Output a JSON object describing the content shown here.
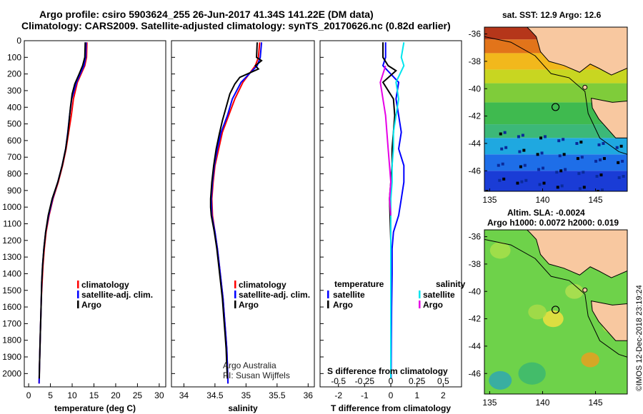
{
  "header": {
    "line1": "Argo profile: csiro 5903624_255 26-Jun-2017 41.34S 141.22E (DM data)",
    "line2": "Climatology: CARS2009. Satellite-adjusted climatology: synTS_20170626.nc (0.82d earlier)"
  },
  "colors": {
    "climatology": "#ff0000",
    "satellite": "#0000ff",
    "argo": "#000000",
    "satellite_s": "#00e5ee",
    "argo_s": "#e600e6"
  },
  "chart_data": [
    {
      "type": "line",
      "id": "temperature",
      "xlabel": "temperature (deg C)",
      "xlim": [
        -1,
        31.5
      ],
      "xticks": [
        0,
        5,
        10,
        15,
        20,
        25,
        30
      ],
      "ylim": [
        2080,
        0
      ],
      "yticks": [
        0,
        100,
        200,
        300,
        400,
        500,
        600,
        700,
        800,
        900,
        1000,
        1100,
        1200,
        1300,
        1400,
        1500,
        1600,
        1700,
        1800,
        1900,
        2000
      ],
      "legend": [
        "climatology",
        "satellite-adj. clim.",
        "Argo"
      ],
      "series": [
        {
          "name": "climatology",
          "key": "climatology",
          "points": [
            [
              13.4,
              10
            ],
            [
              13.3,
              100
            ],
            [
              12.9,
              150
            ],
            [
              11.2,
              250
            ],
            [
              10.3,
              350
            ],
            [
              9.8,
              450
            ],
            [
              9.2,
              550
            ],
            [
              8.6,
              650
            ],
            [
              7.8,
              750
            ],
            [
              6.8,
              850
            ],
            [
              5.6,
              950
            ],
            [
              4.7,
              1050
            ],
            [
              4.0,
              1150
            ],
            [
              3.6,
              1250
            ],
            [
              3.3,
              1350
            ],
            [
              3.1,
              1450
            ],
            [
              2.9,
              1550
            ],
            [
              2.8,
              1650
            ],
            [
              2.7,
              1750
            ],
            [
              2.6,
              1850
            ],
            [
              2.5,
              1950
            ],
            [
              2.4,
              2060
            ]
          ]
        },
        {
          "name": "satellite-adj. clim.",
          "key": "satellite",
          "points": [
            [
              13.2,
              10
            ],
            [
              13.1,
              100
            ],
            [
              12.7,
              150
            ],
            [
              11.0,
              250
            ],
            [
              9.9,
              350
            ],
            [
              9.4,
              450
            ],
            [
              9.0,
              550
            ],
            [
              8.5,
              650
            ],
            [
              7.7,
              750
            ],
            [
              6.7,
              850
            ],
            [
              5.5,
              950
            ],
            [
              4.6,
              1050
            ],
            [
              3.9,
              1150
            ],
            [
              3.5,
              1250
            ],
            [
              3.2,
              1350
            ],
            [
              3.0,
              1450
            ],
            [
              2.9,
              1550
            ],
            [
              2.8,
              1650
            ],
            [
              2.7,
              1750
            ],
            [
              2.6,
              1850
            ],
            [
              2.5,
              1950
            ],
            [
              2.4,
              2060
            ]
          ]
        },
        {
          "name": "Argo",
          "key": "argo",
          "points": [
            [
              13.0,
              10
            ],
            [
              12.9,
              100
            ],
            [
              12.4,
              150
            ],
            [
              11.6,
              200
            ],
            [
              10.6,
              260
            ],
            [
              10.0,
              320
            ],
            [
              9.6,
              400
            ],
            [
              9.3,
              480
            ],
            [
              9.0,
              560
            ],
            [
              8.5,
              650
            ],
            [
              7.7,
              750
            ],
            [
              6.7,
              850
            ],
            [
              5.4,
              950
            ],
            [
              4.5,
              1050
            ],
            [
              3.9,
              1150
            ],
            [
              3.5,
              1250
            ],
            [
              3.2,
              1350
            ],
            [
              3.0,
              1450
            ],
            [
              2.9,
              1550
            ],
            [
              2.8,
              1650
            ],
            [
              2.7,
              1750
            ],
            [
              2.6,
              1850
            ],
            [
              2.5,
              1950
            ],
            [
              2.45,
              2030
            ]
          ]
        }
      ]
    },
    {
      "type": "line",
      "id": "salinity",
      "xlabel": "salinity",
      "xlim": [
        33.8,
        36.1
      ],
      "xticks": [
        34,
        34.5,
        35,
        35.5,
        36
      ],
      "xticklabels": [
        "34",
        "34.5",
        "35",
        "35.5",
        "36"
      ],
      "ylim": [
        2080,
        0
      ],
      "legend": [
        "climatology",
        "satellite-adj. clim.",
        "Argo"
      ],
      "annotation": [
        "Argo Australia",
        "PI: Susan Wijffels"
      ],
      "series": [
        {
          "name": "climatology",
          "key": "climatology",
          "points": [
            [
              35.22,
              10
            ],
            [
              35.2,
              100
            ],
            [
              35.15,
              150
            ],
            [
              34.95,
              250
            ],
            [
              34.82,
              350
            ],
            [
              34.72,
              450
            ],
            [
              34.62,
              550
            ],
            [
              34.56,
              650
            ],
            [
              34.5,
              750
            ],
            [
              34.47,
              850
            ],
            [
              34.45,
              950
            ],
            [
              34.46,
              1050
            ],
            [
              34.5,
              1150
            ],
            [
              34.54,
              1250
            ],
            [
              34.57,
              1350
            ],
            [
              34.6,
              1450
            ],
            [
              34.63,
              1550
            ],
            [
              34.65,
              1650
            ],
            [
              34.67,
              1750
            ],
            [
              34.69,
              1850
            ],
            [
              34.7,
              1950
            ],
            [
              34.71,
              2060
            ]
          ]
        },
        {
          "name": "satellite-adj. clim.",
          "key": "satellite",
          "points": [
            [
              35.25,
              10
            ],
            [
              35.23,
              100
            ],
            [
              35.18,
              150
            ],
            [
              34.92,
              250
            ],
            [
              34.78,
              350
            ],
            [
              34.7,
              450
            ],
            [
              34.6,
              550
            ],
            [
              34.54,
              650
            ],
            [
              34.49,
              750
            ],
            [
              34.46,
              850
            ],
            [
              34.44,
              950
            ],
            [
              34.45,
              1050
            ],
            [
              34.5,
              1150
            ],
            [
              34.54,
              1250
            ],
            [
              34.57,
              1350
            ],
            [
              34.6,
              1450
            ],
            [
              34.63,
              1550
            ],
            [
              34.65,
              1650
            ],
            [
              34.67,
              1750
            ],
            [
              34.69,
              1850
            ],
            [
              34.7,
              1950
            ],
            [
              34.71,
              2060
            ]
          ]
        },
        {
          "name": "Argo",
          "key": "argo",
          "points": [
            [
              35.18,
              10
            ],
            [
              35.17,
              100
            ],
            [
              35.25,
              120
            ],
            [
              35.15,
              150
            ],
            [
              35.2,
              170
            ],
            [
              34.9,
              220
            ],
            [
              34.82,
              260
            ],
            [
              34.74,
              320
            ],
            [
              34.68,
              400
            ],
            [
              34.62,
              480
            ],
            [
              34.57,
              560
            ],
            [
              34.52,
              650
            ],
            [
              34.48,
              750
            ],
            [
              34.45,
              850
            ],
            [
              34.43,
              950
            ],
            [
              34.43,
              1000
            ],
            [
              34.44,
              1050
            ],
            [
              34.49,
              1150
            ],
            [
              34.53,
              1250
            ],
            [
              34.56,
              1350
            ],
            [
              34.59,
              1450
            ],
            [
              34.62,
              1550
            ],
            [
              34.64,
              1650
            ],
            [
              34.66,
              1750
            ],
            [
              34.68,
              1850
            ],
            [
              34.69,
              1950
            ],
            [
              34.7,
              2030
            ]
          ]
        }
      ]
    },
    {
      "type": "line",
      "id": "difference",
      "xlabel": "T difference from climatology",
      "xlabel2": "S difference from climatology",
      "xlim": [
        -2.7,
        2.7
      ],
      "xticks": [
        -2,
        -1,
        0,
        1,
        2
      ],
      "xticks2": [
        -0.5,
        -0.25,
        0,
        0.25,
        0.5
      ],
      "xticklabels2": [
        "-0.5",
        "-0.25",
        "0",
        "0.25",
        "0.5"
      ],
      "ylim": [
        2080,
        0
      ],
      "legend_left_title": "temperature",
      "legend_left": [
        "satellite",
        "Argo"
      ],
      "legend_right_title": "salinity",
      "legend_right": [
        "satellite",
        "Argo"
      ],
      "series": [
        {
          "name": "satellite",
          "key": "satellite",
          "points": [
            [
              -0.2,
              10
            ],
            [
              -0.2,
              100
            ],
            [
              -0.3,
              150
            ],
            [
              0.3,
              250
            ],
            [
              0.2,
              350
            ],
            [
              0.3,
              450
            ],
            [
              0.4,
              550
            ],
            [
              0.3,
              650
            ],
            [
              0.5,
              750
            ],
            [
              0.5,
              850
            ],
            [
              0.4,
              950
            ],
            [
              0.3,
              1050
            ],
            [
              0.1,
              1150
            ],
            [
              0.05,
              1250
            ],
            [
              0.05,
              1400
            ],
            [
              0.03,
              1600
            ],
            [
              0.02,
              1800
            ],
            [
              0.01,
              2030
            ]
          ]
        },
        {
          "name": "Argo",
          "key": "argo",
          "points": [
            [
              -0.3,
              10
            ],
            [
              -0.3,
              100
            ],
            [
              -0.1,
              150
            ],
            [
              0.2,
              180
            ],
            [
              -0.3,
              250
            ],
            [
              0.1,
              350
            ],
            [
              0.15,
              450
            ],
            [
              0.1,
              550
            ],
            [
              0.05,
              650
            ],
            [
              0.05,
              750
            ],
            [
              0.0,
              850
            ],
            [
              -0.05,
              950
            ],
            [
              -0.03,
              1050
            ],
            [
              0.0,
              1200
            ],
            [
              0.0,
              1400
            ],
            [
              0.0,
              1600
            ],
            [
              0.0,
              1800
            ],
            [
              0.0,
              2030
            ]
          ]
        },
        {
          "name": "satellite",
          "key": "satellite_s",
          "points": [
            [
              0.5,
              10
            ],
            [
              0.4,
              100
            ],
            [
              0.5,
              150
            ],
            [
              0.2,
              250
            ],
            [
              0.3,
              350
            ],
            [
              0.2,
              450
            ],
            [
              0.1,
              550
            ],
            [
              0.1,
              650
            ],
            [
              0.05,
              750
            ],
            [
              0.05,
              850
            ],
            [
              0.0,
              950
            ],
            [
              0.0,
              1050
            ],
            [
              0.0,
              1200
            ],
            [
              0.0,
              1400
            ],
            [
              0.0,
              1600
            ],
            [
              0.0,
              1800
            ],
            [
              0.0,
              2030
            ]
          ]
        },
        {
          "name": "Argo",
          "key": "argo_s",
          "points": [
            [
              -0.2,
              150
            ],
            [
              -0.4,
              250
            ],
            [
              -0.3,
              350
            ],
            [
              -0.2,
              450
            ],
            [
              -0.15,
              550
            ],
            [
              -0.1,
              650
            ],
            [
              -0.05,
              750
            ],
            [
              0.0,
              850
            ],
            [
              -0.05,
              950
            ],
            [
              0.0,
              1050
            ]
          ]
        }
      ]
    },
    {
      "type": "heatmap",
      "id": "sst_map",
      "title": "sat. SST: 12.9  Argo: 12.6",
      "xlim": [
        134.5,
        148
      ],
      "ylim": [
        -47.5,
        -35.5
      ],
      "xticks": [
        135,
        140,
        145
      ],
      "yticks": [
        -36,
        -38,
        -40,
        -42,
        -44,
        -46
      ],
      "marker": [
        141.22,
        -41.34
      ]
    },
    {
      "type": "heatmap",
      "id": "sla_map",
      "title": "Altim. SLA: -0.0024",
      "title2": "Argo h1000: 0.0072 h2000: 0.019",
      "xlim": [
        134.5,
        148
      ],
      "ylim": [
        -47.5,
        -35.5
      ],
      "xticks": [
        135,
        140,
        145
      ],
      "yticks": [
        -36,
        -38,
        -40,
        -42,
        -44,
        -46
      ],
      "marker": [
        141.22,
        -41.34
      ]
    }
  ],
  "footer": {
    "credit": "©IMOS 12-Dec-2018 23:19:24"
  }
}
